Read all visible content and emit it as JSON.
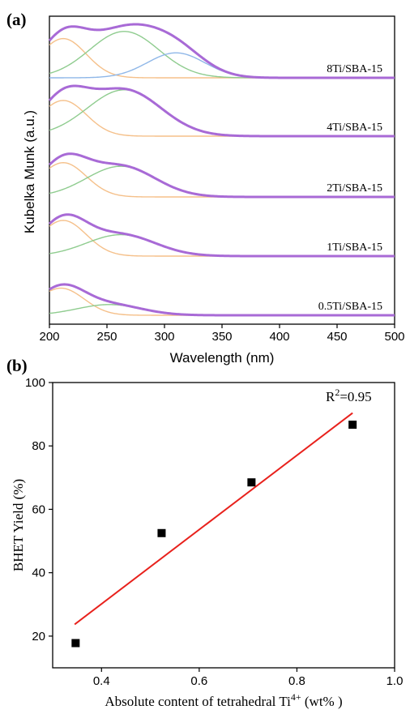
{
  "chart_data": [
    {
      "panel": "(a)",
      "type": "line",
      "xlabel": "Wavelength (nm)",
      "ylabel": "Kubelka Munk (a.u.)",
      "xlim": [
        200,
        500
      ],
      "xticks": [
        200,
        250,
        300,
        350,
        400,
        450,
        500
      ],
      "yticks": "none",
      "series": [
        {
          "name": "8Ti/SBA-15",
          "components": [
            {
              "color": "#f5c08a",
              "center": 212,
              "width": 20,
              "amp": 0.55
            },
            {
              "color": "#8fcc8f",
              "center": 265,
              "width": 30,
              "amp": 0.65
            },
            {
              "color": "#8fb7e8",
              "center": 310,
              "width": 25,
              "amp": 0.35
            }
          ]
        },
        {
          "name": "4Ti/SBA-15",
          "components": [
            {
              "color": "#f5c08a",
              "center": 212,
              "width": 20,
              "amp": 0.5
            },
            {
              "color": "#8fcc8f",
              "center": 265,
              "width": 32,
              "amp": 0.65
            }
          ]
        },
        {
          "name": "2Ti/SBA-15",
          "components": [
            {
              "color": "#f5c08a",
              "center": 212,
              "width": 20,
              "amp": 0.48
            },
            {
              "color": "#8fcc8f",
              "center": 262,
              "width": 30,
              "amp": 0.43
            }
          ]
        },
        {
          "name": "1Ti/SBA-15",
          "components": [
            {
              "color": "#f5c08a",
              "center": 212,
              "width": 20,
              "amp": 0.5
            },
            {
              "color": "#8fcc8f",
              "center": 262,
              "width": 30,
              "amp": 0.3
            }
          ]
        },
        {
          "name": "0.5Ti/SBA-15",
          "components": [
            {
              "color": "#f5c08a",
              "center": 210,
              "width": 20,
              "amp": 0.38
            },
            {
              "color": "#8fcc8f",
              "center": 252,
              "width": 28,
              "amp": 0.15
            }
          ]
        }
      ],
      "total_curve_color": "#a86ad6"
    },
    {
      "panel": "(b)",
      "type": "scatter",
      "xlabel": "Absolute content of  tetrahedral Ti",
      "xlabel_sup": "4+",
      "xlabel_tail": " (wt% )",
      "ylabel": "BHET Yield (%)",
      "xlim": [
        0.3,
        1.0
      ],
      "ylim": [
        10,
        100
      ],
      "xticks": [
        0.4,
        0.6,
        0.8,
        1.0
      ],
      "xtick_labels": [
        "0.4",
        "0.6",
        "0.8",
        "1.0"
      ],
      "yticks": [
        20,
        40,
        60,
        80,
        100
      ],
      "points": [
        {
          "x": 0.347,
          "y": 17.8
        },
        {
          "x": 0.523,
          "y": 52.5
        },
        {
          "x": 0.707,
          "y": 68.5
        },
        {
          "x": 0.914,
          "y": 86.7
        }
      ],
      "fit": {
        "x": [
          0.345,
          0.914
        ],
        "y": [
          23.7,
          90.4
        ],
        "color": "#e8211c"
      },
      "annotation": "R",
      "annotation_sup": "2",
      "annotation_tail": "=0.95"
    }
  ]
}
